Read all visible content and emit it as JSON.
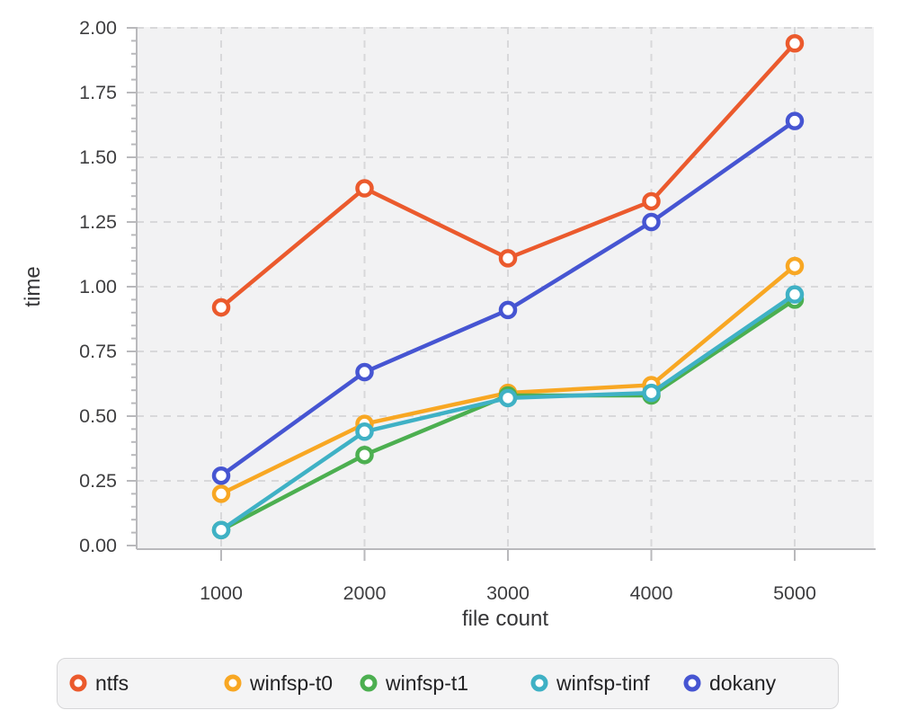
{
  "chart_data": {
    "type": "line",
    "title": "",
    "xlabel": "file count",
    "ylabel": "time",
    "x": [
      1000,
      2000,
      3000,
      4000,
      5000
    ],
    "xtick_labels": [
      "1000",
      "2000",
      "3000",
      "4000",
      "5000"
    ],
    "ytick_labels": [
      "0.00",
      "0.25",
      "0.50",
      "0.75",
      "1.00",
      "1.25",
      "1.50",
      "1.75",
      "2.00"
    ],
    "yticks": [
      0,
      0.25,
      0.5,
      0.75,
      1.0,
      1.25,
      1.5,
      1.75,
      2.0
    ],
    "yminor_step": 0.05,
    "ylim": [
      0,
      2.0
    ],
    "xlim": [
      1000,
      5000
    ],
    "grid": "dashed",
    "legend_position": "bottom",
    "marker": "open-circle",
    "series": [
      {
        "name": "ntfs",
        "color": "#EB5A2D",
        "values": [
          0.92,
          1.38,
          1.11,
          1.33,
          1.94
        ]
      },
      {
        "name": "winfsp-t0",
        "color": "#F8A723",
        "values": [
          0.2,
          0.47,
          0.59,
          0.62,
          1.08
        ]
      },
      {
        "name": "winfsp-t1",
        "color": "#4CAF50",
        "values": [
          0.06,
          0.35,
          0.58,
          0.58,
          0.95
        ]
      },
      {
        "name": "winfsp-tinf",
        "color": "#3FB1C5",
        "values": [
          0.06,
          0.44,
          0.57,
          0.59,
          0.97
        ]
      },
      {
        "name": "dokany",
        "color": "#4655D2",
        "values": [
          0.27,
          0.67,
          0.91,
          1.25,
          1.64
        ]
      }
    ],
    "colors": {
      "plot_background": "#f2f2f3",
      "grid": "#d8d8da",
      "axis": "#b9b9bc",
      "tick_label": "#3e3e40",
      "axis_label": "#353537",
      "marker_fill": "#ffffff"
    }
  }
}
